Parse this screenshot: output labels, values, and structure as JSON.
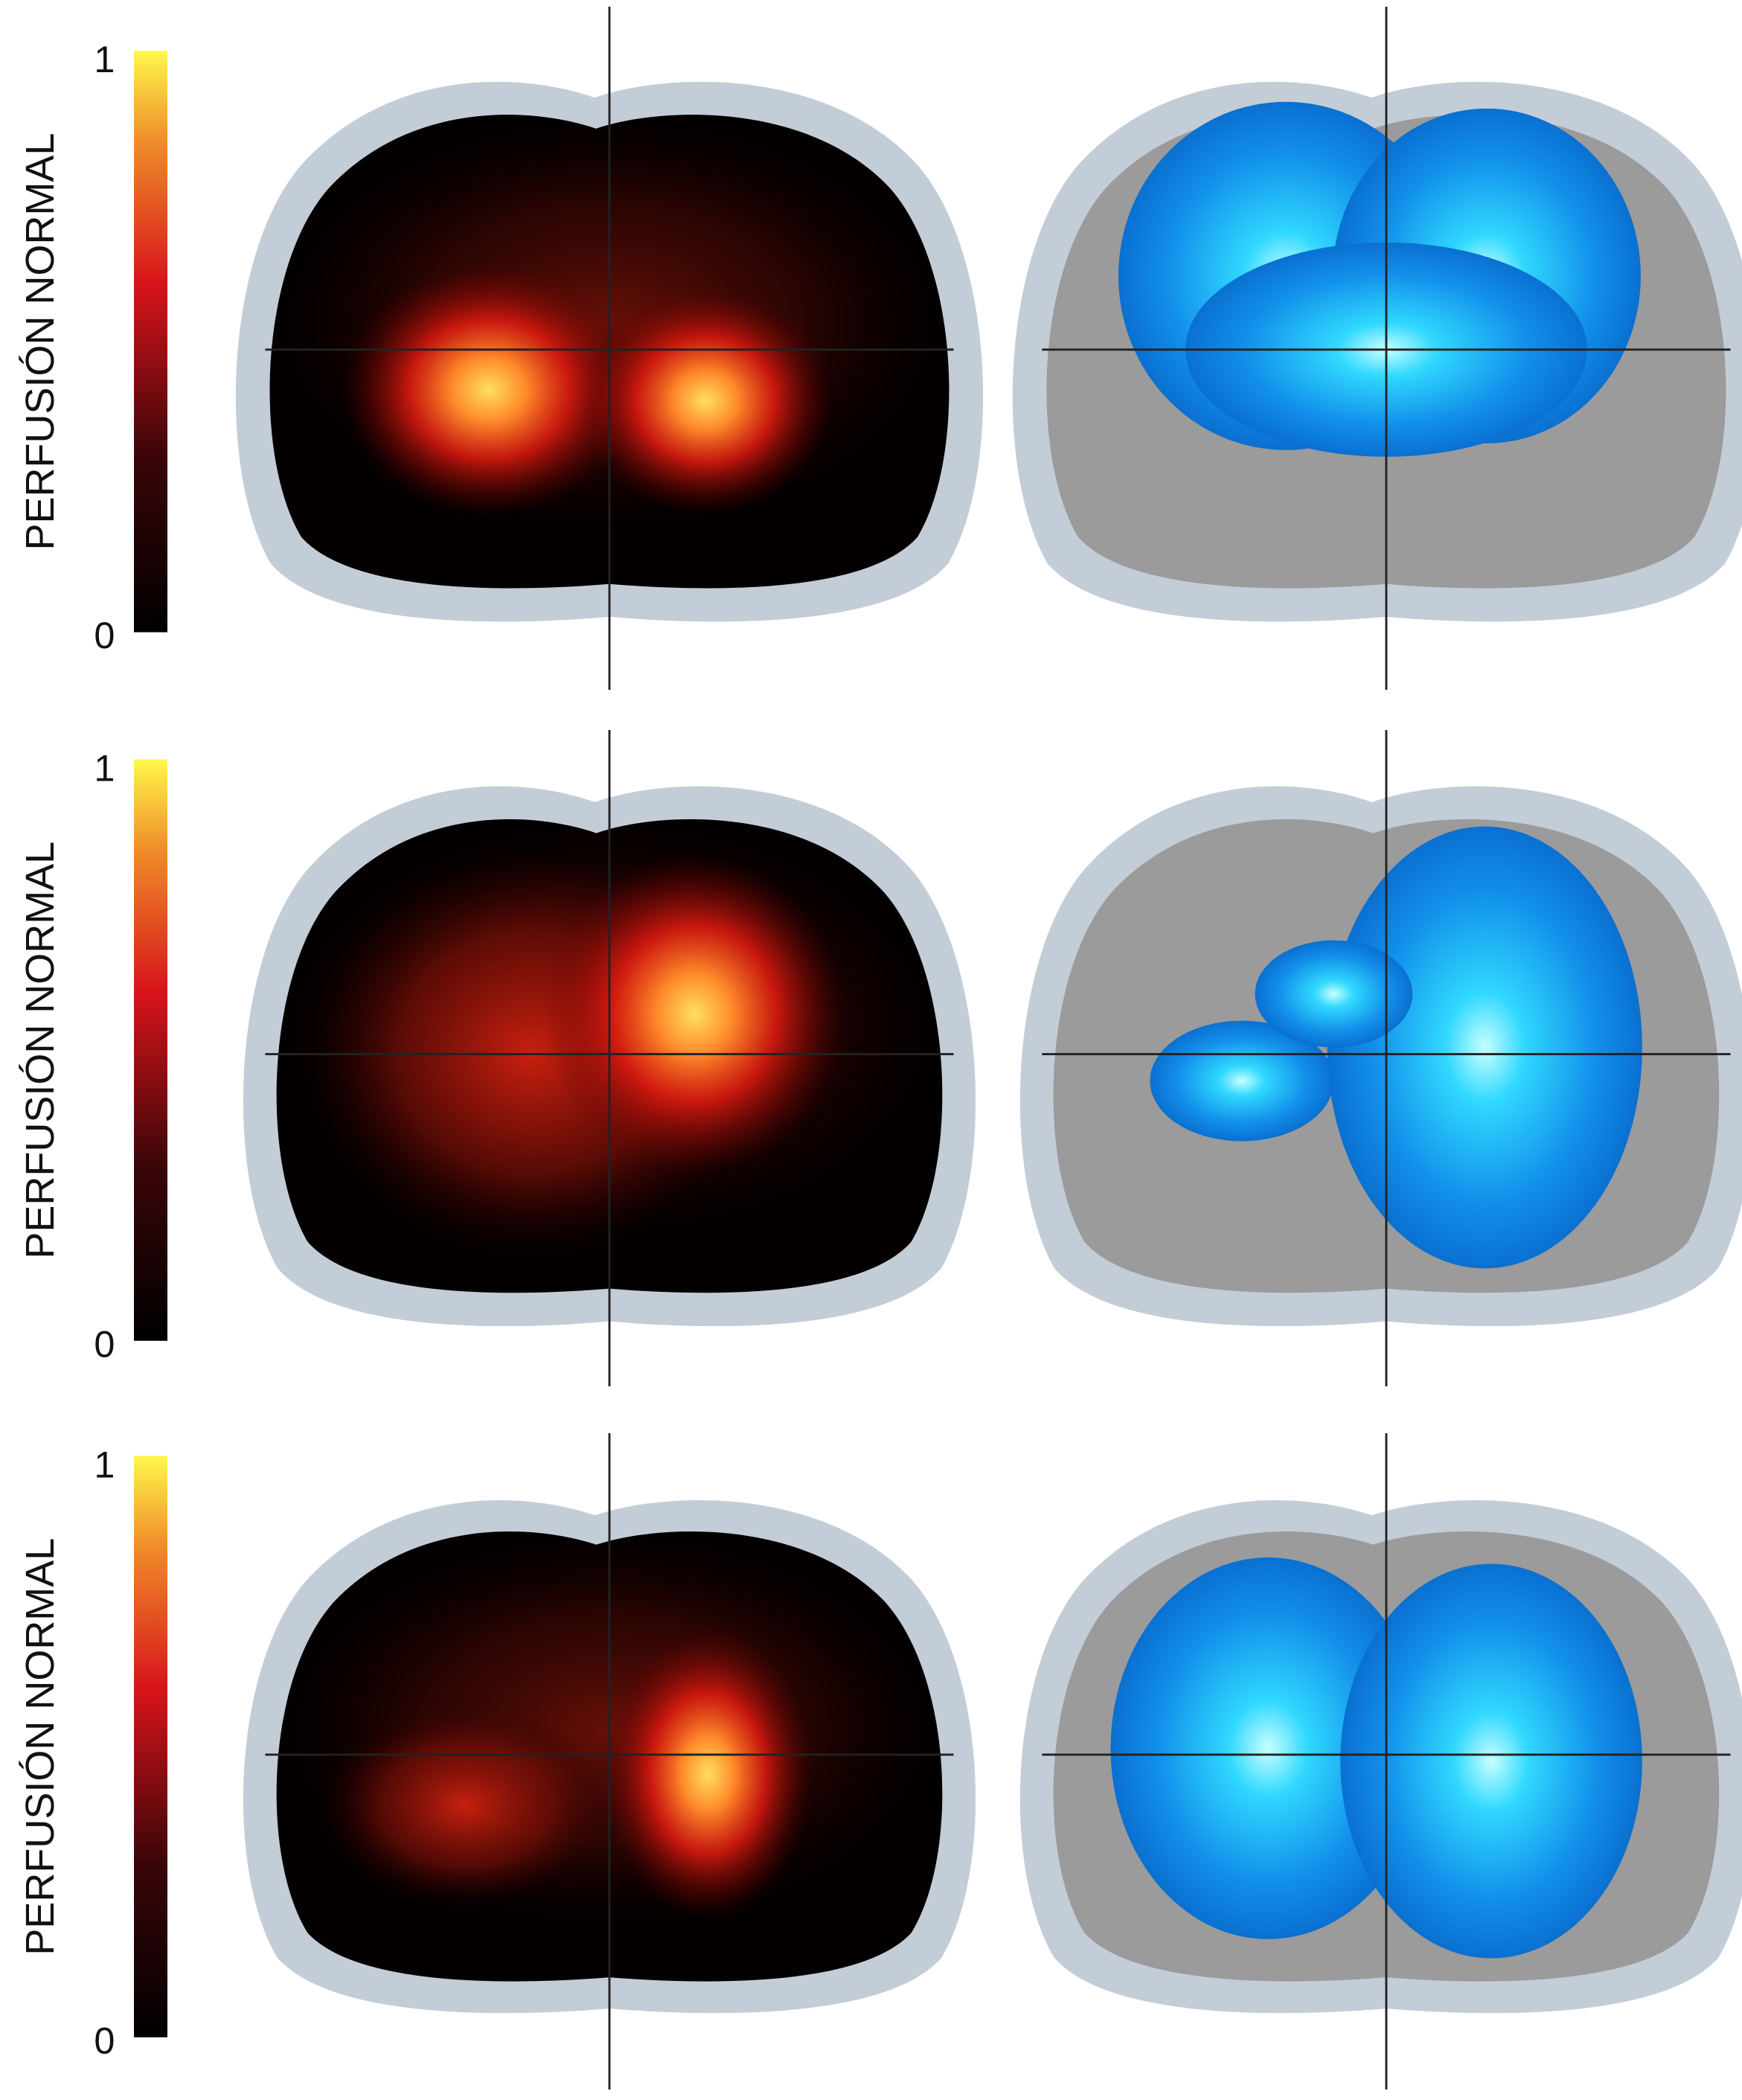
{
  "rows": [
    {
      "label": "PERFUSIÓN NORMAL",
      "max": 1,
      "min": 0
    },
    {
      "label": "PERFUSIÓN NORMAL",
      "max": 1,
      "min": 0
    },
    {
      "label": "PERFUSIÓN NORMAL",
      "max": 1,
      "min": 0
    }
  ]
}
